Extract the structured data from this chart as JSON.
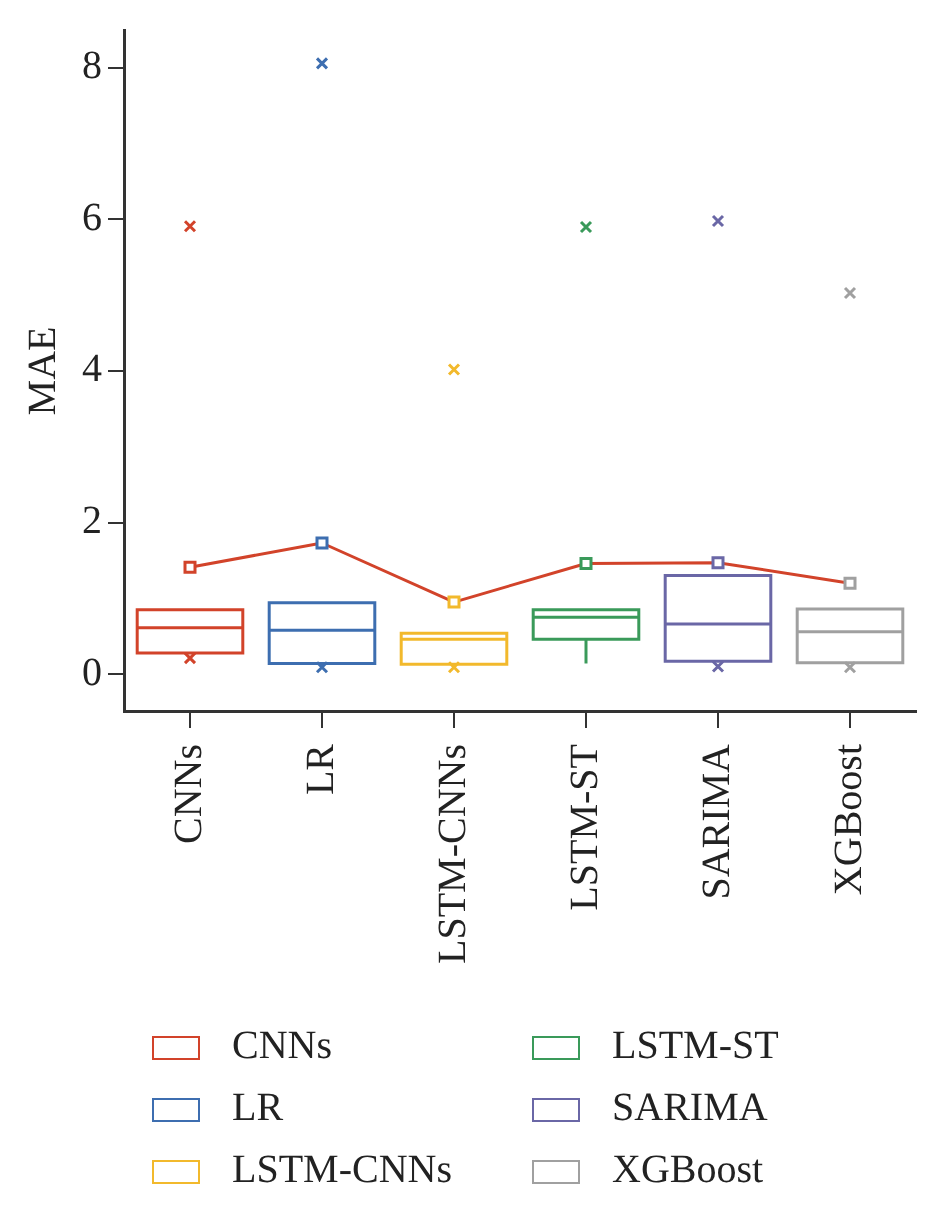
{
  "chart_data": {
    "type": "box",
    "ylabel": "MAE",
    "categories": [
      "CNNs",
      "LR",
      "LSTM-CNNs",
      "LSTM-ST",
      "SARIMA",
      "XGBoost"
    ],
    "ylim": [
      -0.5,
      8.5
    ],
    "yticks": [
      0,
      2,
      4,
      6,
      8
    ],
    "grid": false,
    "legend": "bottom",
    "series": [
      {
        "name": "CNNs",
        "color": "#d2432a",
        "boxes": [
          {
            "low": 0.28,
            "q1": 0.28,
            "median": 0.61,
            "q3": 0.85,
            "high": 0.85,
            "mean": 1.41,
            "outliers": [
              5.91,
              0.21
            ]
          },
          null,
          null,
          null,
          null,
          null
        ]
      },
      {
        "name": "LR",
        "color": "#3d6eb0",
        "boxes": [
          null,
          {
            "low": 0.14,
            "q1": 0.14,
            "median": 0.58,
            "q3": 0.94,
            "high": 0.94,
            "mean": 1.73,
            "outliers": [
              8.06,
              0.09
            ]
          },
          null,
          null,
          null,
          null
        ]
      },
      {
        "name": "LSTM-CNNs",
        "color": "#f2b92c",
        "boxes": [
          null,
          null,
          {
            "low": 0.13,
            "q1": 0.13,
            "median": 0.46,
            "q3": 0.54,
            "high": 0.54,
            "mean": 0.95,
            "outliers": [
              4.02,
              0.09
            ]
          },
          null,
          null,
          null
        ]
      },
      {
        "name": "LSTM-ST",
        "color": "#3a9a5a",
        "boxes": [
          null,
          null,
          null,
          {
            "low": 0.14,
            "q1": 0.46,
            "median": 0.75,
            "q3": 0.85,
            "high": 0.85,
            "mean": 1.46,
            "outliers": [
              5.9
            ]
          },
          null,
          null
        ]
      },
      {
        "name": "SARIMA",
        "color": "#6a67a6",
        "boxes": [
          null,
          null,
          null,
          null,
          {
            "low": 0.17,
            "q1": 0.17,
            "median": 0.66,
            "q3": 1.3,
            "high": 1.3,
            "mean": 1.47,
            "outliers": [
              5.98,
              0.1
            ]
          },
          null
        ]
      },
      {
        "name": "XGBoost",
        "color": "#a0a0a0",
        "boxes": [
          null,
          null,
          null,
          null,
          null,
          {
            "low": 0.15,
            "q1": 0.15,
            "median": 0.56,
            "q3": 0.86,
            "high": 0.86,
            "mean": 1.2,
            "outliers": [
              5.03,
              0.09
            ]
          }
        ]
      },
      {
        "type": "line",
        "color": "#d2432a",
        "marker": "none",
        "values": [
          1.41,
          1.73,
          0.95,
          1.46,
          1.47,
          1.2
        ]
      }
    ]
  }
}
